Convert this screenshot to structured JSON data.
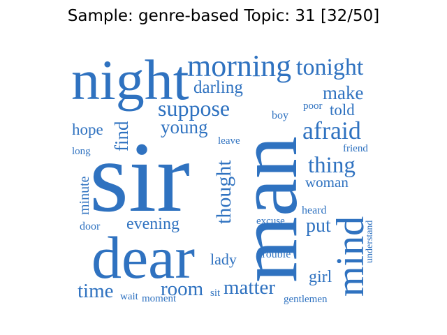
{
  "title": "Sample: genre-based Topic: 31 [32/50]",
  "word_color": "#2f72c0",
  "words": [
    "night",
    "morning",
    "tonight",
    "darling",
    "make",
    "suppose",
    "told",
    "poor",
    "boy",
    "afraid",
    "young",
    "hope",
    "find",
    "leave",
    "friend",
    "long",
    "sir",
    "man",
    "thing",
    "woman",
    "minute",
    "thought",
    "mind",
    "heard",
    "understand",
    "evening",
    "excuse",
    "put",
    "door",
    "dear",
    "lady",
    "trouble",
    "girl",
    "time",
    "wait",
    "moment",
    "room",
    "sit",
    "matter",
    "gentlemen"
  ]
}
